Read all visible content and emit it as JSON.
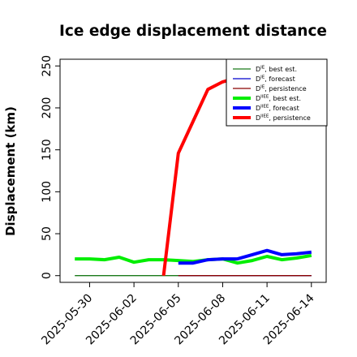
{
  "chart_data": {
    "type": "line",
    "title": "Ice edge displacement distance",
    "ylabel": "Displacement (km)",
    "xlabel": "",
    "ylim": [
      -8,
      258
    ],
    "xlim": [
      "2025-05-28",
      "2025-06-15"
    ],
    "yticks": [
      0,
      50,
      100,
      150,
      200,
      250
    ],
    "xticks": [
      {
        "date": "2025-05-30",
        "label": "2025-05-30",
        "color": "#000000"
      },
      {
        "date": "2025-06-02",
        "label": "2025-06-02",
        "color": "#000000"
      },
      {
        "date": "2025-06-05",
        "label": "2025-06-05",
        "color": "#2e8b2e"
      },
      {
        "date": "2025-06-08",
        "label": "2025-06-08",
        "color": "#000000"
      },
      {
        "date": "2025-06-11",
        "label": "2025-06-11",
        "color": "#000000"
      },
      {
        "date": "2025-06-14",
        "label": "2025-06-14",
        "color": "#000000"
      }
    ],
    "grid": false,
    "legend_position": "top-right",
    "series": [
      {
        "name": "D^IE, best est.",
        "color": "#1a7a1a",
        "width": 1.3,
        "x": [
          "2025-05-29",
          "2025-06-14"
        ],
        "y": [
          0,
          0
        ]
      },
      {
        "name": "D^IE, forecast",
        "color": "#0000cc",
        "width": 1.3,
        "x": [
          "2025-06-05",
          "2025-06-14"
        ],
        "y": [
          0,
          0
        ]
      },
      {
        "name": "D^IE, persistence",
        "color": "#8b0000",
        "width": 1.3,
        "x": [
          "2025-06-05",
          "2025-06-14"
        ],
        "y": [
          0,
          0
        ]
      },
      {
        "name": "D^IIEE, best est.",
        "color": "#00ee00",
        "width": 4,
        "x": [
          "2025-05-29",
          "2025-05-30",
          "2025-05-31",
          "2025-06-01",
          "2025-06-02",
          "2025-06-03",
          "2025-06-04",
          "2025-06-05",
          "2025-06-06",
          "2025-06-07",
          "2025-06-08",
          "2025-06-09",
          "2025-06-10",
          "2025-06-11",
          "2025-06-12",
          "2025-06-13",
          "2025-06-14"
        ],
        "y": [
          20,
          20,
          19,
          22,
          16,
          19,
          19,
          18,
          17,
          19,
          20,
          15,
          18,
          23,
          19,
          21,
          24
        ]
      },
      {
        "name": "D^IIEE, forecast",
        "color": "#0000ff",
        "width": 4,
        "x": [
          "2025-06-05",
          "2025-06-06",
          "2025-06-07",
          "2025-06-08",
          "2025-06-09",
          "2025-06-10",
          "2025-06-11",
          "2025-06-12",
          "2025-06-13",
          "2025-06-14"
        ],
        "y": [
          15,
          15,
          19,
          20,
          20,
          25,
          30,
          25,
          26,
          28
        ]
      },
      {
        "name": "D^IIEE, persistence",
        "color": "#ff0000",
        "width": 4,
        "x": [
          "2025-06-04",
          "2025-06-05",
          "2025-06-06",
          "2025-06-07",
          "2025-06-08",
          "2025-06-09",
          "2025-06-10",
          "2025-06-11",
          "2025-06-12",
          "2025-06-13",
          "2025-06-14"
        ],
        "y": [
          0,
          146,
          184,
          222,
          231,
          236,
          238,
          239,
          240,
          240,
          240
        ]
      }
    ],
    "legend": [
      {
        "main": "D",
        "sup": "IE",
        "suffix": ", best est.",
        "color": "#1a7a1a",
        "width": 1.3
      },
      {
        "main": "D",
        "sup": "IE",
        "suffix": ", forecast",
        "color": "#0000cc",
        "width": 1.3
      },
      {
        "main": "D",
        "sup": "IE",
        "suffix": ", persistence",
        "color": "#8b0000",
        "width": 1.3
      },
      {
        "main": "D",
        "sup": "IIEE",
        "suffix": ", best est.",
        "color": "#00ee00",
        "width": 4
      },
      {
        "main": "D",
        "sup": "IIEE",
        "suffix": ", forecast",
        "color": "#0000ff",
        "width": 4
      },
      {
        "main": "D",
        "sup": "IIEE",
        "suffix": ", persistence",
        "color": "#ff0000",
        "width": 4
      }
    ]
  }
}
